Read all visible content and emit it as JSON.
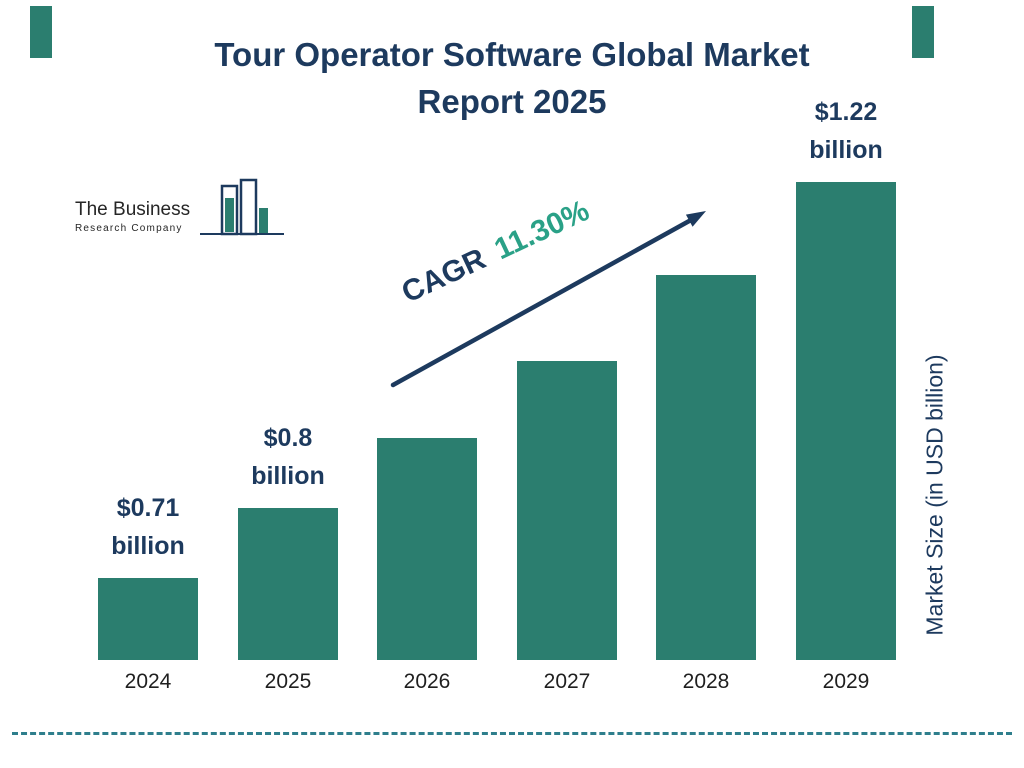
{
  "colors": {
    "teal": "#2b7e6f",
    "navy": "#1d3a5e",
    "cagr_green": "#2aa187",
    "dash_line": "#2e7e8c",
    "year_text": "#1f1f1f",
    "background": "#ffffff"
  },
  "logo": {
    "line1": "The Business",
    "line2": "Research Company"
  },
  "title": {
    "line1": "Tour Operator Software Global Market",
    "line2": "Report 2025"
  },
  "cagr": {
    "label": "CAGR",
    "value": "11.30%"
  },
  "y_axis_label": "Market Size (in USD billion)",
  "chart_data": {
    "type": "bar",
    "title": "Tour Operator Software Global Market Report 2025",
    "xlabel": "",
    "ylabel": "Market Size (in USD billion)",
    "categories": [
      "2024",
      "2025",
      "2026",
      "2027",
      "2028",
      "2029"
    ],
    "values": [
      0.71,
      0.8,
      0.89,
      0.99,
      1.1,
      1.22
    ],
    "ylim": [
      0,
      1.3
    ],
    "grid": false,
    "legend": "none",
    "cagr": "11.30%",
    "bars": [
      {
        "year": "2024",
        "value": 0.71,
        "label_amount": "$0.71",
        "label_unit": "billion"
      },
      {
        "year": "2025",
        "value": 0.8,
        "label_amount": "$0.8",
        "label_unit": "billion"
      },
      {
        "year": "2026",
        "value": 0.89,
        "label_amount": "",
        "label_unit": ""
      },
      {
        "year": "2027",
        "value": 0.99,
        "label_amount": "",
        "label_unit": ""
      },
      {
        "year": "2028",
        "value": 1.1,
        "label_amount": "",
        "label_unit": ""
      },
      {
        "year": "2029",
        "value": 1.22,
        "label_amount": "$1.22",
        "label_unit": "billion"
      }
    ]
  }
}
